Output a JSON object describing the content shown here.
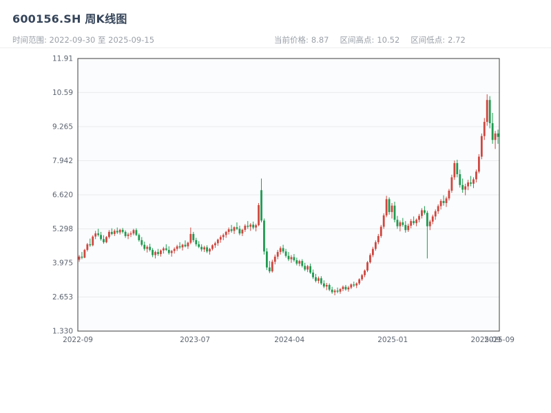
{
  "header": {
    "title": "600156.SH 周K线图",
    "subtitle": "时间范围: 2022-09-30 至 2025-09-15",
    "stats": [
      {
        "label": "当前价格:",
        "value": "8.87"
      },
      {
        "label": "区间高点:",
        "value": "10.52"
      },
      {
        "label": "区间低点:",
        "value": "2.72"
      }
    ]
  },
  "chart_data": {
    "type": "candlestick",
    "title": "600156.SH 周K线图",
    "xlabel": "",
    "ylabel": "",
    "date_range": [
      "2022-09-30",
      "2025-09-15"
    ],
    "current_price": 8.87,
    "range_high": 10.52,
    "range_low": 2.72,
    "ylim": [
      1.33,
      11.91
    ],
    "y_ticks": [
      "11.91",
      "10.59",
      "9.265",
      "7.942",
      "6.620",
      "5.298",
      "3.975",
      "2.653",
      "1.330"
    ],
    "y_tick_values": [
      11.91,
      10.59,
      9.265,
      7.942,
      6.62,
      5.298,
      3.975,
      2.653,
      1.33
    ],
    "x_ticks": [
      {
        "label": "2022-09",
        "pos": 0.0
      },
      {
        "label": "2023-07",
        "pos": 0.278
      },
      {
        "label": "2024-04",
        "pos": 0.502
      },
      {
        "label": "2025-01",
        "pos": 0.747
      },
      {
        "label": "2025-09",
        "pos": 0.968
      },
      {
        "label": "2025-09",
        "pos": 1.0
      }
    ],
    "grid": true,
    "legend": false,
    "up_color": "#d0453e",
    "down_color": "#1e9a50",
    "grid_color": "#e8eaed",
    "plot_bg": "#fafcfd",
    "border_color": "#3c3c3c",
    "candles": [
      [
        4.1,
        4.28,
        4.02,
        4.22
      ],
      [
        4.22,
        4.4,
        4.12,
        4.18
      ],
      [
        4.18,
        4.52,
        4.16,
        4.48
      ],
      [
        4.48,
        4.75,
        4.42,
        4.7
      ],
      [
        4.7,
        4.92,
        4.6,
        4.66
      ],
      [
        4.66,
        5.05,
        4.62,
        5.0
      ],
      [
        5.0,
        5.22,
        4.9,
        5.12
      ],
      [
        5.12,
        5.3,
        5.0,
        5.06
      ],
      [
        5.06,
        5.18,
        4.84,
        4.9
      ],
      [
        4.9,
        5.05,
        4.72,
        4.78
      ],
      [
        4.78,
        5.02,
        4.74,
        4.98
      ],
      [
        4.98,
        5.25,
        4.92,
        5.18
      ],
      [
        5.18,
        5.32,
        5.05,
        5.1
      ],
      [
        5.1,
        5.28,
        5.02,
        5.22
      ],
      [
        5.22,
        5.35,
        5.1,
        5.16
      ],
      [
        5.16,
        5.3,
        5.08,
        5.26
      ],
      [
        5.26,
        5.33,
        5.12,
        5.18
      ],
      [
        5.18,
        5.24,
        4.95,
        5.02
      ],
      [
        5.02,
        5.15,
        4.9,
        5.08
      ],
      [
        5.08,
        5.2,
        4.98,
        5.12
      ],
      [
        5.12,
        5.3,
        5.05,
        5.25
      ],
      [
        5.25,
        5.32,
        5.02,
        5.06
      ],
      [
        5.06,
        5.12,
        4.8,
        4.86
      ],
      [
        4.86,
        4.98,
        4.62,
        4.68
      ],
      [
        4.68,
        4.8,
        4.45,
        4.52
      ],
      [
        4.52,
        4.66,
        4.38,
        4.6
      ],
      [
        4.6,
        4.72,
        4.42,
        4.48
      ],
      [
        4.48,
        4.55,
        4.2,
        4.28
      ],
      [
        4.28,
        4.45,
        4.15,
        4.4
      ],
      [
        4.4,
        4.52,
        4.25,
        4.32
      ],
      [
        4.32,
        4.5,
        4.22,
        4.46
      ],
      [
        4.46,
        4.6,
        4.34,
        4.54
      ],
      [
        4.54,
        4.7,
        4.44,
        4.48
      ],
      [
        4.48,
        4.62,
        4.3,
        4.36
      ],
      [
        4.36,
        4.48,
        4.22,
        4.44
      ],
      [
        4.44,
        4.58,
        4.34,
        4.52
      ],
      [
        4.52,
        4.68,
        4.44,
        4.62
      ],
      [
        4.62,
        4.78,
        4.52,
        4.58
      ],
      [
        4.58,
        4.72,
        4.46,
        4.68
      ],
      [
        4.68,
        4.85,
        4.58,
        4.62
      ],
      [
        4.62,
        4.8,
        4.52,
        4.76
      ],
      [
        4.76,
        5.35,
        4.7,
        5.1
      ],
      [
        5.1,
        5.18,
        4.78,
        4.86
      ],
      [
        4.86,
        4.95,
        4.62,
        4.7
      ],
      [
        4.7,
        4.82,
        4.55,
        4.6
      ],
      [
        4.6,
        4.7,
        4.42,
        4.5
      ],
      [
        4.5,
        4.64,
        4.4,
        4.58
      ],
      [
        4.58,
        4.66,
        4.36,
        4.42
      ],
      [
        4.42,
        4.56,
        4.3,
        4.52
      ],
      [
        4.52,
        4.7,
        4.46,
        4.66
      ],
      [
        4.66,
        4.8,
        4.56,
        4.74
      ],
      [
        4.74,
        4.92,
        4.64,
        4.88
      ],
      [
        4.88,
        5.05,
        4.76,
        4.98
      ],
      [
        4.98,
        5.12,
        4.86,
        5.06
      ],
      [
        5.06,
        5.22,
        4.95,
        5.18
      ],
      [
        5.18,
        5.35,
        5.08,
        5.28
      ],
      [
        5.28,
        5.45,
        5.15,
        5.22
      ],
      [
        5.22,
        5.4,
        5.1,
        5.36
      ],
      [
        5.36,
        5.55,
        5.25,
        5.3
      ],
      [
        5.3,
        5.42,
        5.05,
        5.12
      ],
      [
        5.12,
        5.3,
        5.02,
        5.26
      ],
      [
        5.26,
        5.48,
        5.18,
        5.42
      ],
      [
        5.42,
        5.6,
        5.3,
        5.38
      ],
      [
        5.38,
        5.52,
        5.22,
        5.46
      ],
      [
        5.46,
        5.58,
        5.28,
        5.35
      ],
      [
        5.35,
        5.5,
        5.2,
        5.44
      ],
      [
        5.44,
        6.3,
        5.4,
        6.22
      ],
      [
        6.8,
        7.25,
        5.55,
        5.62
      ],
      [
        5.62,
        5.7,
        4.3,
        4.42
      ],
      [
        4.42,
        4.55,
        3.7,
        3.8
      ],
      [
        3.8,
        4.05,
        3.58,
        3.65
      ],
      [
        3.65,
        4.1,
        3.6,
        4.02
      ],
      [
        4.02,
        4.3,
        3.92,
        4.22
      ],
      [
        4.22,
        4.48,
        4.12,
        4.4
      ],
      [
        4.4,
        4.62,
        4.3,
        4.55
      ],
      [
        4.55,
        4.68,
        4.35,
        4.42
      ],
      [
        4.42,
        4.52,
        4.18,
        4.25
      ],
      [
        4.25,
        4.4,
        4.05,
        4.12
      ],
      [
        4.12,
        4.28,
        3.98,
        4.2
      ],
      [
        4.2,
        4.32,
        4.02,
        4.08
      ],
      [
        4.08,
        4.18,
        3.88,
        3.95
      ],
      [
        3.95,
        4.1,
        3.85,
        4.05
      ],
      [
        4.05,
        4.12,
        3.8,
        3.86
      ],
      [
        3.86,
        3.98,
        3.66,
        3.72
      ],
      [
        3.72,
        3.9,
        3.62,
        3.85
      ],
      [
        3.85,
        3.95,
        3.55,
        3.6
      ],
      [
        3.6,
        3.72,
        3.35,
        3.42
      ],
      [
        3.42,
        3.55,
        3.22,
        3.28
      ],
      [
        3.28,
        3.45,
        3.18,
        3.38
      ],
      [
        3.38,
        3.46,
        3.12,
        3.18
      ],
      [
        3.18,
        3.3,
        3.0,
        3.06
      ],
      [
        3.06,
        3.2,
        2.92,
        3.12
      ],
      [
        3.12,
        3.18,
        2.88,
        2.94
      ],
      [
        2.94,
        3.05,
        2.78,
        2.84
      ],
      [
        2.84,
        2.96,
        2.72,
        2.9
      ],
      [
        2.9,
        3.02,
        2.8,
        2.86
      ],
      [
        2.86,
        3.0,
        2.78,
        2.96
      ],
      [
        2.96,
        3.1,
        2.88,
        3.05
      ],
      [
        3.05,
        3.12,
        2.9,
        2.95
      ],
      [
        2.95,
        3.08,
        2.86,
        3.02
      ],
      [
        3.02,
        3.18,
        2.96,
        3.14
      ],
      [
        3.14,
        3.25,
        3.04,
        3.1
      ],
      [
        3.1,
        3.22,
        3.0,
        3.18
      ],
      [
        3.18,
        3.38,
        3.12,
        3.34
      ],
      [
        3.34,
        3.55,
        3.28,
        3.5
      ],
      [
        3.5,
        3.72,
        3.42,
        3.68
      ],
      [
        3.68,
        4.05,
        3.62,
        4.0
      ],
      [
        4.0,
        4.35,
        3.95,
        4.28
      ],
      [
        4.28,
        4.6,
        4.2,
        4.52
      ],
      [
        4.52,
        4.85,
        4.45,
        4.78
      ],
      [
        4.78,
        5.1,
        4.7,
        5.02
      ],
      [
        5.02,
        5.45,
        4.95,
        5.38
      ],
      [
        5.38,
        5.9,
        5.3,
        5.82
      ],
      [
        5.82,
        6.58,
        5.75,
        6.45
      ],
      [
        6.45,
        6.52,
        5.85,
        5.95
      ],
      [
        5.95,
        6.3,
        5.7,
        6.2
      ],
      [
        6.2,
        6.35,
        5.55,
        5.65
      ],
      [
        5.65,
        5.8,
        5.3,
        5.4
      ],
      [
        5.4,
        5.62,
        5.2,
        5.55
      ],
      [
        5.55,
        5.72,
        5.38,
        5.45
      ],
      [
        5.45,
        5.6,
        5.15,
        5.25
      ],
      [
        5.25,
        5.5,
        5.18,
        5.42
      ],
      [
        5.42,
        5.68,
        5.32,
        5.6
      ],
      [
        5.6,
        5.78,
        5.45,
        5.52
      ],
      [
        5.52,
        5.7,
        5.4,
        5.65
      ],
      [
        5.65,
        5.88,
        5.55,
        5.8
      ],
      [
        5.8,
        6.1,
        5.7,
        6.02
      ],
      [
        6.02,
        6.18,
        5.85,
        5.92
      ],
      [
        5.92,
        6.0,
        4.15,
        5.4
      ],
      [
        5.4,
        5.65,
        5.25,
        5.58
      ],
      [
        5.58,
        5.85,
        5.48,
        5.78
      ],
      [
        5.78,
        6.05,
        5.65,
        5.98
      ],
      [
        5.98,
        6.25,
        5.88,
        6.18
      ],
      [
        6.18,
        6.45,
        6.05,
        6.38
      ],
      [
        6.38,
        6.6,
        6.2,
        6.3
      ],
      [
        6.3,
        6.55,
        6.15,
        6.48
      ],
      [
        6.48,
        6.85,
        6.4,
        6.78
      ],
      [
        6.78,
        7.4,
        6.7,
        7.3
      ],
      [
        7.3,
        7.95,
        7.2,
        7.85
      ],
      [
        7.85,
        7.98,
        7.3,
        7.42
      ],
      [
        7.42,
        7.6,
        6.9,
        7.0
      ],
      [
        7.0,
        7.25,
        6.7,
        6.82
      ],
      [
        6.82,
        7.05,
        6.6,
        6.95
      ],
      [
        6.95,
        7.2,
        6.8,
        7.1
      ],
      [
        7.1,
        7.35,
        6.95,
        7.05
      ],
      [
        7.05,
        7.3,
        6.88,
        7.22
      ],
      [
        7.22,
        7.6,
        7.1,
        7.52
      ],
      [
        7.52,
        8.2,
        7.45,
        8.1
      ],
      [
        8.1,
        9.0,
        8.0,
        8.9
      ],
      [
        8.9,
        9.6,
        8.75,
        9.45
      ],
      [
        9.45,
        10.52,
        9.3,
        10.3
      ],
      [
        10.3,
        10.45,
        9.2,
        9.4
      ],
      [
        9.4,
        9.8,
        8.6,
        8.75
      ],
      [
        8.75,
        9.1,
        8.4,
        9.0
      ],
      [
        9.0,
        9.15,
        8.6,
        8.87
      ]
    ]
  }
}
